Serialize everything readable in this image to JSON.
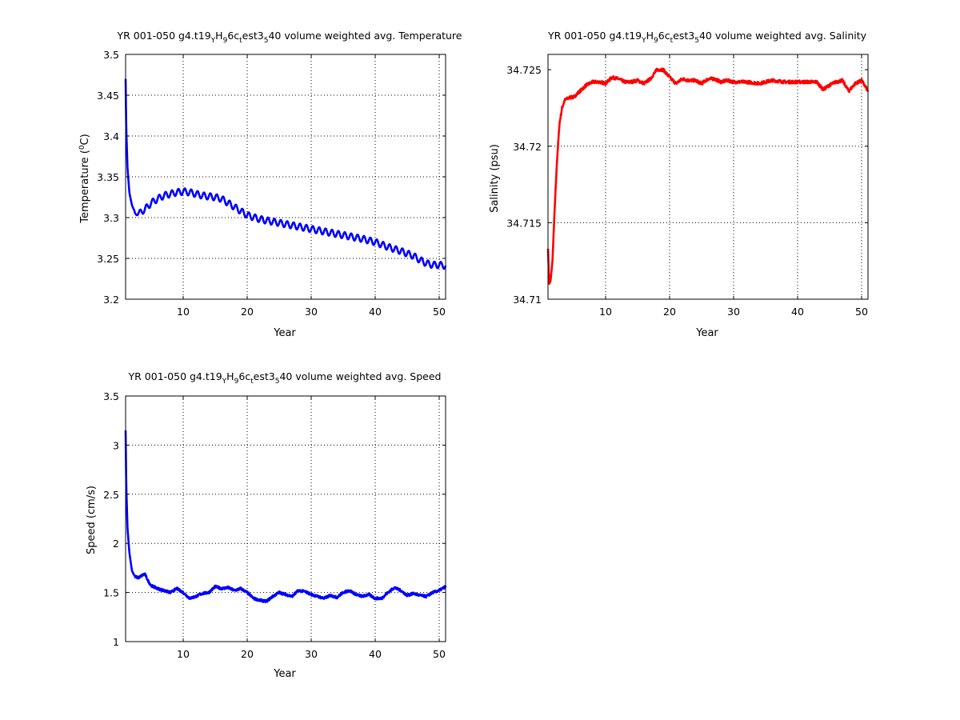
{
  "chart_data": [
    {
      "type": "line",
      "title": "YR 001-050 g4.t19_YH_96c_test3_540 volume weighted avg. Temperature",
      "title_parts": [
        "YR 001-050 g4.t19",
        "Y",
        "H",
        "9",
        "6c",
        "t",
        "est3",
        "5",
        "40 volume weighted avg. Temperature"
      ],
      "xlabel": "Year",
      "ylabel": "Temperature (°C)",
      "ylabel_parts": [
        "Temperature (",
        "0",
        "C)"
      ],
      "xlim": [
        1,
        51
      ],
      "ylim": [
        3.2,
        3.5
      ],
      "xticks": [
        10,
        20,
        30,
        40,
        50
      ],
      "yticks": [
        3.2,
        3.25,
        3.3,
        3.35,
        3.4,
        3.45,
        3.5
      ],
      "xtick_labels": [
        "10",
        "20",
        "30",
        "40",
        "50"
      ],
      "ytick_labels": [
        "3.2",
        "3.25",
        "3.3",
        "3.35",
        "3.4",
        "3.45",
        "3.5"
      ],
      "grid": true,
      "color": "#0000ff",
      "x": [
        1.0,
        1.1,
        1.3,
        1.6,
        2.0,
        2.5,
        3.0,
        4.0,
        5.0,
        6.0,
        7.0,
        8.0,
        9.0,
        10.0,
        11.0,
        12.0,
        13.0,
        14.0,
        15.0,
        16.0,
        17.0,
        18.0,
        19.0,
        20.0,
        22.0,
        24.0,
        26.0,
        28.0,
        30.0,
        32.0,
        34.0,
        36.0,
        38.0,
        40.0,
        42.0,
        44.0,
        46.0,
        47.0,
        48.0,
        49.0,
        50.0,
        51.0
      ],
      "y": [
        3.47,
        3.41,
        3.36,
        3.33,
        3.315,
        3.305,
        3.305,
        3.31,
        3.318,
        3.323,
        3.327,
        3.329,
        3.331,
        3.332,
        3.331,
        3.329,
        3.327,
        3.326,
        3.325,
        3.323,
        3.318,
        3.313,
        3.308,
        3.303,
        3.298,
        3.295,
        3.292,
        3.289,
        3.286,
        3.283,
        3.28,
        3.277,
        3.274,
        3.27,
        3.264,
        3.259,
        3.253,
        3.248,
        3.244,
        3.242,
        3.242,
        3.241
      ],
      "seasonal_amplitude": 0.004
    },
    {
      "type": "line",
      "title": "YR 001-050 g4.t19_YH_96c_test3_540 volume weighted avg. Salinity",
      "title_parts": [
        "YR 001-050 g4.t19",
        "Y",
        "H",
        "9",
        "6c",
        "t",
        "est3",
        "5",
        "40 volume weighted avg. Salinity"
      ],
      "xlabel": "Year",
      "ylabel": "Salinity (psu)",
      "xlim": [
        1,
        51
      ],
      "ylim": [
        34.71,
        34.726
      ],
      "xticks": [
        10,
        20,
        30,
        40,
        50
      ],
      "yticks": [
        34.71,
        34.715,
        34.72,
        34.725
      ],
      "xtick_labels": [
        "10",
        "20",
        "30",
        "40",
        "50"
      ],
      "ytick_labels": [
        "34.71",
        "34.715",
        "34.72",
        "34.725"
      ],
      "grid": true,
      "color": "#ff0000",
      "x": [
        1.0,
        1.2,
        1.4,
        1.7,
        2.0,
        2.4,
        2.8,
        3.2,
        3.6,
        4.0,
        4.5,
        5.0,
        6.0,
        7.0,
        8.0,
        9.0,
        10.0,
        11.0,
        12.0,
        13.0,
        14.0,
        15.0,
        16.0,
        17.0,
        18.0,
        19.0,
        20.0,
        21.0,
        22.0,
        23.0,
        24.0,
        25.0,
        26.0,
        27.0,
        28.0,
        29.0,
        30.0,
        32.0,
        34.0,
        36.0,
        38.0,
        40.0,
        42.0,
        43.0,
        44.0,
        45.0,
        46.0,
        47.0,
        48.0,
        49.0,
        50.0,
        51.0
      ],
      "y": [
        34.7133,
        34.711,
        34.7112,
        34.7125,
        34.7155,
        34.719,
        34.7215,
        34.7225,
        34.723,
        34.7231,
        34.7232,
        34.7232,
        34.7236,
        34.724,
        34.7242,
        34.7242,
        34.7241,
        34.7245,
        34.7244,
        34.7242,
        34.7242,
        34.7243,
        34.7241,
        34.7244,
        34.725,
        34.725,
        34.7245,
        34.7241,
        34.7244,
        34.7243,
        34.7243,
        34.7241,
        34.7244,
        34.7244,
        34.7242,
        34.7243,
        34.7242,
        34.7242,
        34.7241,
        34.7243,
        34.7242,
        34.7242,
        34.7242,
        34.7242,
        34.7237,
        34.724,
        34.7242,
        34.7243,
        34.7236,
        34.7241,
        34.7243,
        34.7236
      ],
      "noise_amplitude": 0.0001
    },
    {
      "type": "line",
      "title": "YR 001-050 g4.t19_YH_96c_test3_540 volume weighted avg. Speed",
      "title_parts": [
        "YR 001-050 g4.t19",
        "Y",
        "H",
        "9",
        "6c",
        "t",
        "est3",
        "5",
        "40 volume weighted avg. Speed"
      ],
      "xlabel": "Year",
      "ylabel": "Speed (cm/s)",
      "xlim": [
        1,
        51
      ],
      "ylim": [
        1,
        3.5
      ],
      "xticks": [
        10,
        20,
        30,
        40,
        50
      ],
      "yticks": [
        1,
        1.5,
        2,
        2.5,
        3,
        3.5
      ],
      "xtick_labels": [
        "10",
        "20",
        "30",
        "40",
        "50"
      ],
      "ytick_labels": [
        "1",
        "1.5",
        "2",
        "2.5",
        "3",
        "3.5"
      ],
      "grid": true,
      "color": "#0000ff",
      "x": [
        1.0,
        1.1,
        1.3,
        1.6,
        2.0,
        2.5,
        3.0,
        3.5,
        4.0,
        4.5,
        5.0,
        6.0,
        7.0,
        8.0,
        9.0,
        10.0,
        11.0,
        12.0,
        13.0,
        14.0,
        15.0,
        16.0,
        17.0,
        18.0,
        19.0,
        20.0,
        21.0,
        22.0,
        23.0,
        24.0,
        25.0,
        26.0,
        27.0,
        28.0,
        29.0,
        30.0,
        31.0,
        32.0,
        33.0,
        34.0,
        35.0,
        36.0,
        37.0,
        38.0,
        39.0,
        40.0,
        41.0,
        42.0,
        43.0,
        44.0,
        45.0,
        46.0,
        47.0,
        48.0,
        49.0,
        50.0,
        51.0
      ],
      "y": [
        3.15,
        2.6,
        2.15,
        1.9,
        1.72,
        1.66,
        1.65,
        1.67,
        1.69,
        1.62,
        1.57,
        1.54,
        1.52,
        1.5,
        1.54,
        1.5,
        1.44,
        1.46,
        1.49,
        1.5,
        1.56,
        1.54,
        1.55,
        1.52,
        1.54,
        1.5,
        1.44,
        1.42,
        1.41,
        1.46,
        1.5,
        1.48,
        1.46,
        1.52,
        1.51,
        1.48,
        1.46,
        1.44,
        1.47,
        1.45,
        1.5,
        1.52,
        1.48,
        1.46,
        1.48,
        1.44,
        1.44,
        1.5,
        1.55,
        1.52,
        1.47,
        1.49,
        1.47,
        1.46,
        1.5,
        1.52,
        1.56
      ],
      "noise_amplitude": 0.012
    }
  ]
}
